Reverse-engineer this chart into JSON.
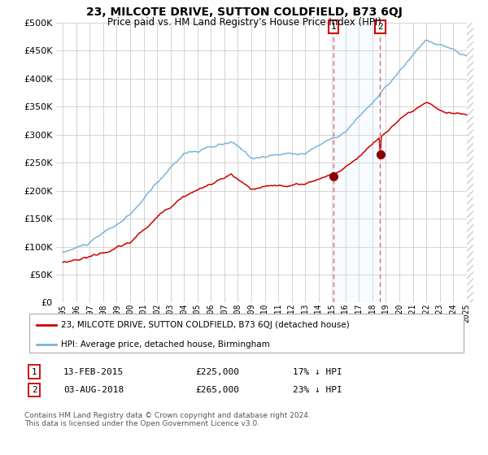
{
  "title": "23, MILCOTE DRIVE, SUTTON COLDFIELD, B73 6QJ",
  "subtitle": "Price paid vs. HM Land Registry's House Price Index (HPI)",
  "legend_line1": "23, MILCOTE DRIVE, SUTTON COLDFIELD, B73 6QJ (detached house)",
  "legend_line2": "HPI: Average price, detached house, Birmingham",
  "annotation1_label": "1",
  "annotation1_date": "13-FEB-2015",
  "annotation1_price": "£225,000",
  "annotation1_hpi": "17% ↓ HPI",
  "annotation2_label": "2",
  "annotation2_date": "03-AUG-2018",
  "annotation2_price": "£265,000",
  "annotation2_hpi": "23% ↓ HPI",
  "footnote": "Contains HM Land Registry data © Crown copyright and database right 2024.\nThis data is licensed under the Open Government Licence v3.0.",
  "hpi_color": "#7ab4d8",
  "property_color": "#cc0000",
  "marker_color": "#8b0000",
  "vline_color": "#dd6666",
  "shade_color": "#ddeeff",
  "annotation_box_color": "#cc0000",
  "background_color": "#ffffff",
  "grid_color": "#cccccc",
  "yticks": [
    0,
    50000,
    100000,
    150000,
    200000,
    250000,
    300000,
    350000,
    400000,
    450000,
    500000
  ],
  "sale1_year": 2015.1,
  "sale2_year": 2018.58,
  "sale1_price": 225000,
  "sale2_price": 265000
}
